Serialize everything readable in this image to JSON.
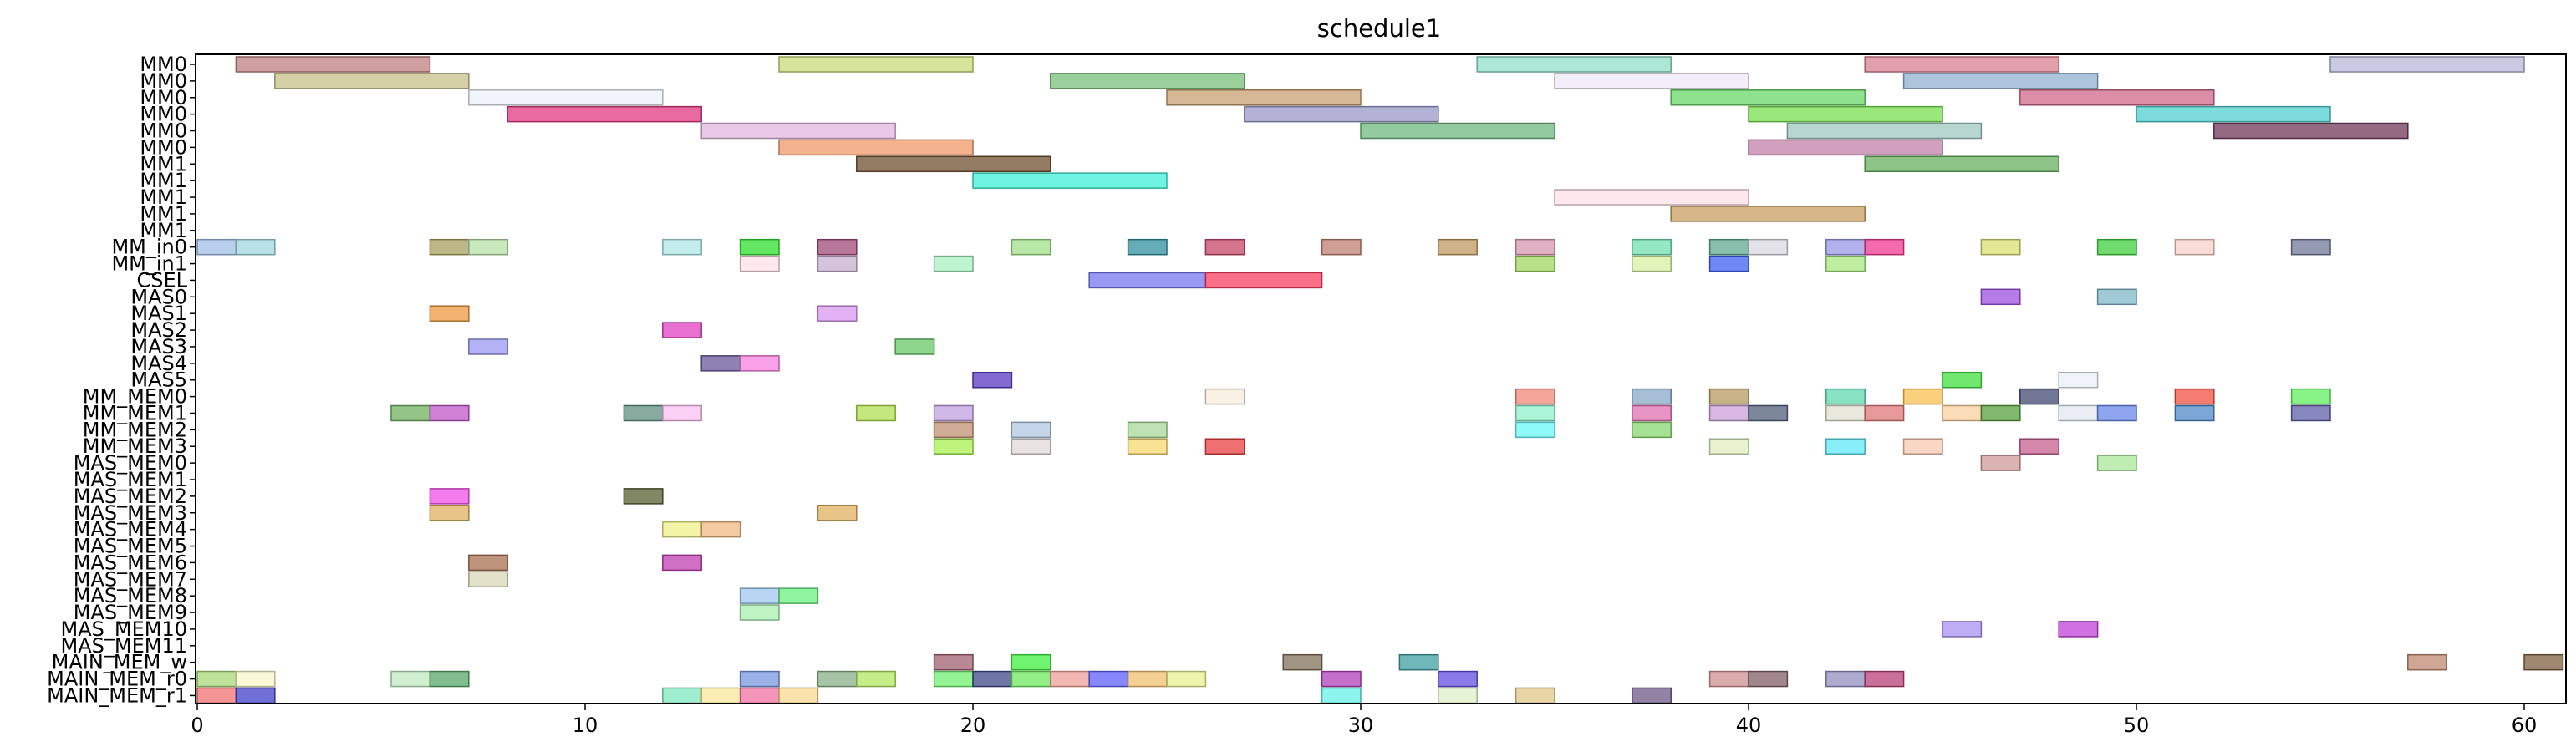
{
  "chart_data": {
    "type": "gantt",
    "title": "schedule1",
    "xlim": [
      0,
      61
    ],
    "x_ticks": [
      0,
      10,
      20,
      30,
      40,
      50,
      60
    ],
    "grid": false,
    "legend": "none",
    "rows": [
      "MM0",
      "MM0",
      "MM0",
      "MM0",
      "MM0",
      "MM0",
      "MM1",
      "MM1",
      "MM1",
      "MM1",
      "MM1",
      "MM_in0",
      "MM_in1",
      "CSEL",
      "MAS0",
      "MAS1",
      "MAS2",
      "MAS3",
      "MAS4",
      "MAS5",
      "MM_MEM0",
      "MM_MEM1",
      "MM_MEM2",
      "MM_MEM3",
      "MAS_MEM0",
      "MAS_MEM1",
      "MAS_MEM2",
      "MAS_MEM3",
      "MAS_MEM4",
      "MAS_MEM5",
      "MAS_MEM6",
      "MAS_MEM7",
      "MAS_MEM8",
      "MAS_MEM9",
      "MAS_MEM10",
      "MAS_MEM11",
      "MAIN_MEM_w",
      "MAIN_MEM_r0",
      "MAIN_MEM_r1"
    ],
    "tasks": [
      {
        "row": 0,
        "start": 1,
        "end": 6,
        "color": "#c08080"
      },
      {
        "row": 0,
        "start": 15,
        "end": 20,
        "color": "#c8dc78"
      },
      {
        "row": 0,
        "start": 33,
        "end": 38,
        "color": "#90e0c8"
      },
      {
        "row": 0,
        "start": 43,
        "end": 48,
        "color": "#d88090"
      },
      {
        "row": 0,
        "start": 55,
        "end": 60,
        "color": "#b8b8d8"
      },
      {
        "row": 1,
        "start": 2,
        "end": 7,
        "color": "#c8c088"
      },
      {
        "row": 1,
        "start": 22,
        "end": 27,
        "color": "#78c078"
      },
      {
        "row": 1,
        "start": 35,
        "end": 40,
        "color": "#f0e8f8"
      },
      {
        "row": 1,
        "start": 44,
        "end": 49,
        "color": "#90b0d0"
      },
      {
        "row": 2,
        "start": 7,
        "end": 12,
        "color": "#eef0fa"
      },
      {
        "row": 2,
        "start": 25,
        "end": 30,
        "color": "#c8a070"
      },
      {
        "row": 2,
        "start": 38,
        "end": 43,
        "color": "#68d868"
      },
      {
        "row": 2,
        "start": 47,
        "end": 52,
        "color": "#d06888"
      },
      {
        "row": 3,
        "start": 8,
        "end": 13,
        "color": "#e03880"
      },
      {
        "row": 3,
        "start": 27,
        "end": 32,
        "color": "#9898c8"
      },
      {
        "row": 3,
        "start": 40,
        "end": 45,
        "color": "#78e050"
      },
      {
        "row": 3,
        "start": 50,
        "end": 55,
        "color": "#50d0d0"
      },
      {
        "row": 4,
        "start": 13,
        "end": 18,
        "color": "#e0b8e0"
      },
      {
        "row": 4,
        "start": 30,
        "end": 35,
        "color": "#70b880"
      },
      {
        "row": 4,
        "start": 41,
        "end": 46,
        "color": "#a0c8c0"
      },
      {
        "row": 4,
        "start": 52,
        "end": 57,
        "color": "#703858"
      },
      {
        "row": 5,
        "start": 15,
        "end": 20,
        "color": "#f09868"
      },
      {
        "row": 5,
        "start": 40,
        "end": 45,
        "color": "#c080a8"
      },
      {
        "row": 6,
        "start": 17,
        "end": 22,
        "color": "#705030"
      },
      {
        "row": 6,
        "start": 43,
        "end": 48,
        "color": "#68b060"
      },
      {
        "row": 7,
        "start": 20,
        "end": 25,
        "color": "#40f0d8"
      },
      {
        "row": 8,
        "start": 35,
        "end": 40,
        "color": "#fce0e8"
      },
      {
        "row": 9,
        "start": 38,
        "end": 43,
        "color": "#c8a060"
      },
      {
        "row": 11,
        "start": 0,
        "end": 1,
        "color": "#a0c0e8"
      },
      {
        "row": 11,
        "start": 1,
        "end": 2,
        "color": "#a0d8e0"
      },
      {
        "row": 11,
        "start": 6,
        "end": 7,
        "color": "#a8a060"
      },
      {
        "row": 11,
        "start": 7,
        "end": 8,
        "color": "#b8e0a8"
      },
      {
        "row": 11,
        "start": 12,
        "end": 13,
        "color": "#b0e8e8"
      },
      {
        "row": 11,
        "start": 14,
        "end": 15,
        "color": "#30e030"
      },
      {
        "row": 11,
        "start": 16,
        "end": 17,
        "color": "#a04878"
      },
      {
        "row": 11,
        "start": 21,
        "end": 22,
        "color": "#a0e088"
      },
      {
        "row": 11,
        "start": 24,
        "end": 25,
        "color": "#3090a0"
      },
      {
        "row": 11,
        "start": 26,
        "end": 27,
        "color": "#c84868"
      },
      {
        "row": 11,
        "start": 29,
        "end": 30,
        "color": "#c08070"
      },
      {
        "row": 11,
        "start": 32,
        "end": 33,
        "color": "#c09860"
      },
      {
        "row": 11,
        "start": 34,
        "end": 35,
        "color": "#d898b0"
      },
      {
        "row": 11,
        "start": 37,
        "end": 38,
        "color": "#70e0b0"
      },
      {
        "row": 11,
        "start": 39,
        "end": 40,
        "color": "#60a890"
      },
      {
        "row": 11,
        "start": 40,
        "end": 41,
        "color": "#d8d8e0"
      },
      {
        "row": 11,
        "start": 42,
        "end": 43,
        "color": "#9898e8"
      },
      {
        "row": 11,
        "start": 43,
        "end": 44,
        "color": "#f03890"
      },
      {
        "row": 11,
        "start": 46,
        "end": 47,
        "color": "#d8e070"
      },
      {
        "row": 11,
        "start": 49,
        "end": 50,
        "color": "#40d040"
      },
      {
        "row": 11,
        "start": 51,
        "end": 52,
        "color": "#f8d0c8"
      },
      {
        "row": 11,
        "start": 54,
        "end": 55,
        "color": "#707898"
      },
      {
        "row": 12,
        "start": 14,
        "end": 15,
        "color": "#fce0e8"
      },
      {
        "row": 12,
        "start": 16,
        "end": 17,
        "color": "#c8b0d0"
      },
      {
        "row": 12,
        "start": 19,
        "end": 20,
        "color": "#a8f0c0"
      },
      {
        "row": 12,
        "start": 34,
        "end": 35,
        "color": "#a0d860"
      },
      {
        "row": 12,
        "start": 37,
        "end": 38,
        "color": "#d8f0a0"
      },
      {
        "row": 12,
        "start": 39,
        "end": 40,
        "color": "#4060f0"
      },
      {
        "row": 12,
        "start": 42,
        "end": 43,
        "color": "#a8e880"
      },
      {
        "row": 13,
        "start": 23,
        "end": 26,
        "color": "#7878f0"
      },
      {
        "row": 13,
        "start": 26,
        "end": 29,
        "color": "#f84060"
      },
      {
        "row": 14,
        "start": 46,
        "end": 47,
        "color": "#a050e0"
      },
      {
        "row": 14,
        "start": 49,
        "end": 50,
        "color": "#80b8c8"
      },
      {
        "row": 15,
        "start": 6,
        "end": 7,
        "color": "#f09840"
      },
      {
        "row": 15,
        "start": 16,
        "end": 17,
        "color": "#d898f0"
      },
      {
        "row": 16,
        "start": 12,
        "end": 13,
        "color": "#e040c0"
      },
      {
        "row": 17,
        "start": 7,
        "end": 8,
        "color": "#9898f0"
      },
      {
        "row": 17,
        "start": 18,
        "end": 19,
        "color": "#68c868"
      },
      {
        "row": 18,
        "start": 13,
        "end": 14,
        "color": "#685898"
      },
      {
        "row": 18,
        "start": 14,
        "end": 15,
        "color": "#f880e0"
      },
      {
        "row": 19,
        "start": 20,
        "end": 21,
        "color": "#5838c0"
      },
      {
        "row": 19,
        "start": 45,
        "end": 46,
        "color": "#40e040"
      },
      {
        "row": 19,
        "start": 48,
        "end": 49,
        "color": "#e8f0f8"
      },
      {
        "row": 20,
        "start": 26,
        "end": 27,
        "color": "#f8ecdc"
      },
      {
        "row": 20,
        "start": 34,
        "end": 35,
        "color": "#f08878"
      },
      {
        "row": 20,
        "start": 37,
        "end": 38,
        "color": "#88a8c8"
      },
      {
        "row": 20,
        "start": 39,
        "end": 40,
        "color": "#b89860"
      },
      {
        "row": 20,
        "start": 42,
        "end": 43,
        "color": "#60d8b0"
      },
      {
        "row": 20,
        "start": 44,
        "end": 45,
        "color": "#f8c050"
      },
      {
        "row": 20,
        "start": 47,
        "end": 48,
        "color": "#404870"
      },
      {
        "row": 20,
        "start": 51,
        "end": 52,
        "color": "#f05040"
      },
      {
        "row": 20,
        "start": 54,
        "end": 55,
        "color": "#60f060"
      },
      {
        "row": 21,
        "start": 5,
        "end": 6,
        "color": "#70b060"
      },
      {
        "row": 21,
        "start": 6,
        "end": 7,
        "color": "#c058c8"
      },
      {
        "row": 21,
        "start": 11,
        "end": 12,
        "color": "#609080"
      },
      {
        "row": 21,
        "start": 12,
        "end": 13,
        "color": "#f8c0f0"
      },
      {
        "row": 21,
        "start": 17,
        "end": 18,
        "color": "#b0e050"
      },
      {
        "row": 21,
        "start": 19,
        "end": 20,
        "color": "#c0a0e0"
      },
      {
        "row": 21,
        "start": 34,
        "end": 35,
        "color": "#90f0c8"
      },
      {
        "row": 21,
        "start": 37,
        "end": 38,
        "color": "#e070b0"
      },
      {
        "row": 21,
        "start": 39,
        "end": 40,
        "color": "#c8a0d8"
      },
      {
        "row": 21,
        "start": 40,
        "end": 41,
        "color": "#506078"
      },
      {
        "row": 21,
        "start": 42,
        "end": 43,
        "color": "#e0e0d0"
      },
      {
        "row": 21,
        "start": 43,
        "end": 44,
        "color": "#e07878"
      },
      {
        "row": 21,
        "start": 45,
        "end": 46,
        "color": "#f8d0a0"
      },
      {
        "row": 21,
        "start": 46,
        "end": 47,
        "color": "#58a040"
      },
      {
        "row": 21,
        "start": 48,
        "end": 49,
        "color": "#e0e8f0"
      },
      {
        "row": 21,
        "start": 49,
        "end": 50,
        "color": "#6888e8"
      },
      {
        "row": 21,
        "start": 51,
        "end": 52,
        "color": "#5088c8"
      },
      {
        "row": 21,
        "start": 54,
        "end": 55,
        "color": "#6060a8"
      },
      {
        "row": 22,
        "start": 19,
        "end": 20,
        "color": "#c09070"
      },
      {
        "row": 22,
        "start": 21,
        "end": 22,
        "color": "#b0c8e0"
      },
      {
        "row": 22,
        "start": 24,
        "end": 25,
        "color": "#a8d898"
      },
      {
        "row": 22,
        "start": 34,
        "end": 35,
        "color": "#68f8f8"
      },
      {
        "row": 22,
        "start": 37,
        "end": 38,
        "color": "#88d870"
      },
      {
        "row": 23,
        "start": 19,
        "end": 20,
        "color": "#a8f050"
      },
      {
        "row": 23,
        "start": 21,
        "end": 22,
        "color": "#e0d8d8"
      },
      {
        "row": 23,
        "start": 24,
        "end": 25,
        "color": "#f8d870"
      },
      {
        "row": 23,
        "start": 26,
        "end": 27,
        "color": "#e84040"
      },
      {
        "row": 23,
        "start": 39,
        "end": 40,
        "color": "#e0f0c0"
      },
      {
        "row": 23,
        "start": 42,
        "end": 43,
        "color": "#60e8f8"
      },
      {
        "row": 23,
        "start": 44,
        "end": 45,
        "color": "#f8c8b0"
      },
      {
        "row": 23,
        "start": 47,
        "end": 48,
        "color": "#c86090"
      },
      {
        "row": 24,
        "start": 46,
        "end": 47,
        "color": "#d09898"
      },
      {
        "row": 24,
        "start": 49,
        "end": 50,
        "color": "#a8e898"
      },
      {
        "row": 26,
        "start": 6,
        "end": 7,
        "color": "#f050e8"
      },
      {
        "row": 26,
        "start": 11,
        "end": 12,
        "color": "#586030"
      },
      {
        "row": 27,
        "start": 6,
        "end": 7,
        "color": "#e0b060"
      },
      {
        "row": 27,
        "start": 16,
        "end": 17,
        "color": "#e0b060"
      },
      {
        "row": 28,
        "start": 12,
        "end": 13,
        "color": "#f0f088"
      },
      {
        "row": 28,
        "start": 13,
        "end": 14,
        "color": "#f0b880"
      },
      {
        "row": 30,
        "start": 7,
        "end": 8,
        "color": "#a87050"
      },
      {
        "row": 30,
        "start": 12,
        "end": 13,
        "color": "#c040b0"
      },
      {
        "row": 31,
        "start": 7,
        "end": 8,
        "color": "#d8d8b8"
      },
      {
        "row": 32,
        "start": 14,
        "end": 15,
        "color": "#a0c8f0"
      },
      {
        "row": 32,
        "start": 15,
        "end": 16,
        "color": "#68f080"
      },
      {
        "row": 33,
        "start": 14,
        "end": 15,
        "color": "#a8f0b0"
      },
      {
        "row": 34,
        "start": 45,
        "end": 46,
        "color": "#a890f0"
      },
      {
        "row": 34,
        "start": 48,
        "end": 49,
        "color": "#c040d8"
      },
      {
        "row": 36,
        "start": 19,
        "end": 20,
        "color": "#a06070"
      },
      {
        "row": 36,
        "start": 21,
        "end": 22,
        "color": "#40f040"
      },
      {
        "row": 36,
        "start": 28,
        "end": 29,
        "color": "#807058"
      },
      {
        "row": 36,
        "start": 31,
        "end": 32,
        "color": "#40a0a0"
      },
      {
        "row": 36,
        "start": 57,
        "end": 58,
        "color": "#c08870"
      },
      {
        "row": 36,
        "start": 60,
        "end": 61,
        "color": "#806040"
      },
      {
        "row": 37,
        "start": 0,
        "end": 1,
        "color": "#a8d878"
      },
      {
        "row": 37,
        "start": 1,
        "end": 2,
        "color": "#f8f8c8"
      },
      {
        "row": 37,
        "start": 5,
        "end": 6,
        "color": "#c0e8c0"
      },
      {
        "row": 37,
        "start": 6,
        "end": 7,
        "color": "#58a868"
      },
      {
        "row": 37,
        "start": 14,
        "end": 15,
        "color": "#7898e0"
      },
      {
        "row": 37,
        "start": 16,
        "end": 17,
        "color": "#88b088"
      },
      {
        "row": 37,
        "start": 17,
        "end": 18,
        "color": "#b0e860"
      },
      {
        "row": 37,
        "start": 19,
        "end": 20,
        "color": "#70f070"
      },
      {
        "row": 37,
        "start": 20,
        "end": 21,
        "color": "#404888"
      },
      {
        "row": 37,
        "start": 21,
        "end": 22,
        "color": "#70e860"
      },
      {
        "row": 37,
        "start": 22,
        "end": 23,
        "color": "#f0a098"
      },
      {
        "row": 37,
        "start": 23,
        "end": 24,
        "color": "#6060f8"
      },
      {
        "row": 37,
        "start": 24,
        "end": 25,
        "color": "#f0c070"
      },
      {
        "row": 37,
        "start": 25,
        "end": 26,
        "color": "#e8f090"
      },
      {
        "row": 37,
        "start": 29,
        "end": 30,
        "color": "#b040b8"
      },
      {
        "row": 37,
        "start": 32,
        "end": 33,
        "color": "#6050e0"
      },
      {
        "row": 37,
        "start": 39,
        "end": 40,
        "color": "#d09090"
      },
      {
        "row": 37,
        "start": 40,
        "end": 41,
        "color": "#806068"
      },
      {
        "row": 37,
        "start": 42,
        "end": 43,
        "color": "#9090c0"
      },
      {
        "row": 37,
        "start": 43,
        "end": 44,
        "color": "#b84078"
      },
      {
        "row": 38,
        "start": 0,
        "end": 1,
        "color": "#f07070"
      },
      {
        "row": 38,
        "start": 1,
        "end": 2,
        "color": "#4040c8"
      },
      {
        "row": 38,
        "start": 12,
        "end": 13,
        "color": "#80e8c0"
      },
      {
        "row": 38,
        "start": 13,
        "end": 14,
        "color": "#f8e898"
      },
      {
        "row": 38,
        "start": 14,
        "end": 15,
        "color": "#f070a0"
      },
      {
        "row": 38,
        "start": 15,
        "end": 16,
        "color": "#f8d890"
      },
      {
        "row": 38,
        "start": 29,
        "end": 30,
        "color": "#68f0e8"
      },
      {
        "row": 38,
        "start": 32,
        "end": 33,
        "color": "#e0f0c8"
      },
      {
        "row": 38,
        "start": 34,
        "end": 35,
        "color": "#e0c888"
      },
      {
        "row": 38,
        "start": 37,
        "end": 38,
        "color": "#705888"
      }
    ]
  }
}
